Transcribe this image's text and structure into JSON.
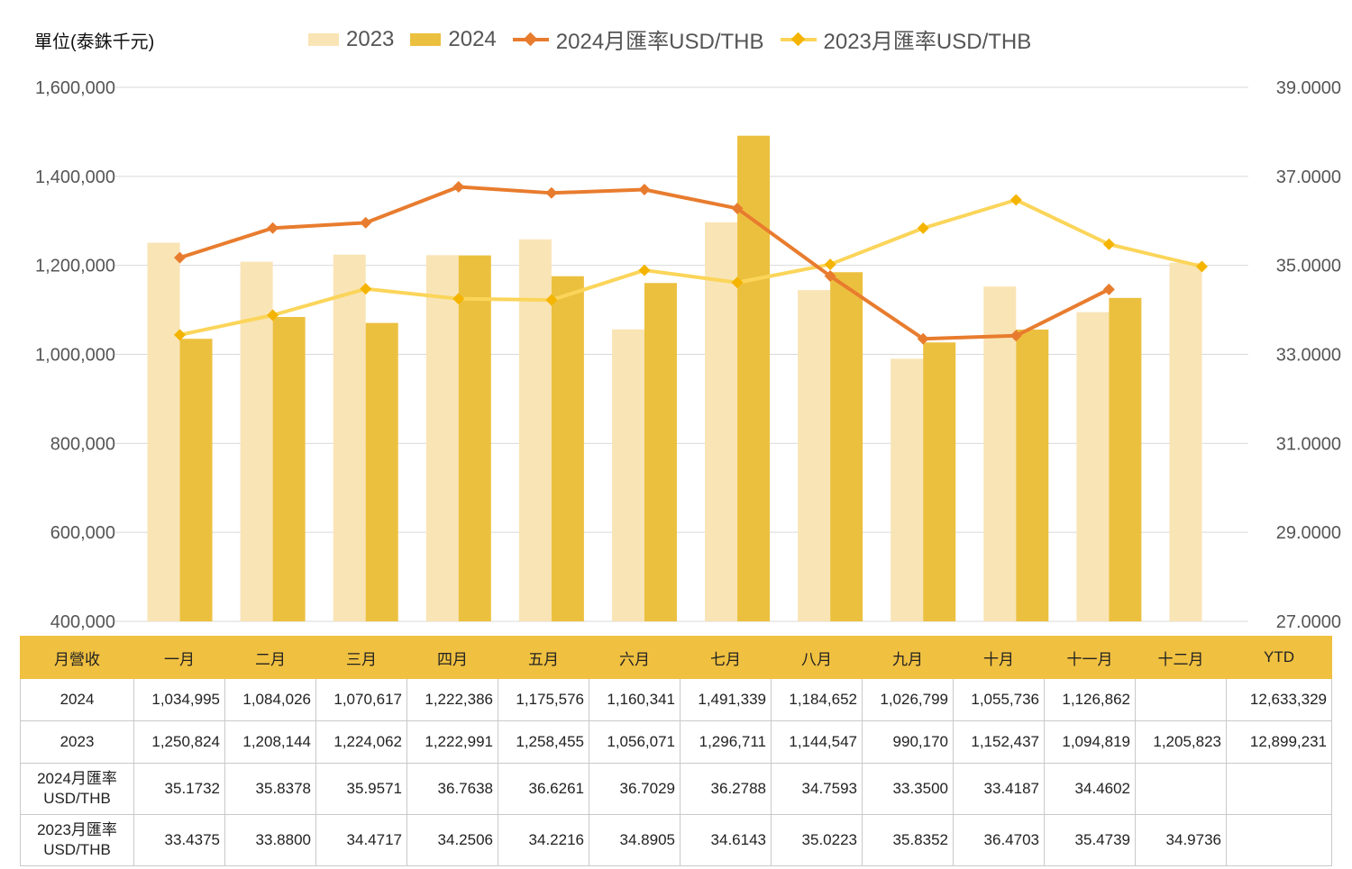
{
  "unit_label": "單位(泰銖千元)",
  "legend": [
    {
      "label": "2023",
      "color": "#f9e4b5",
      "kind": "bar"
    },
    {
      "label": "2024",
      "color": "#ecc03f",
      "kind": "bar"
    },
    {
      "label": "2024月匯率USD/THB",
      "color": "#e87c2e",
      "kind": "line"
    },
    {
      "label": "2023月匯率USD/THB",
      "color": "#fbd55a",
      "kind": "line"
    }
  ],
  "chart_data": {
    "type": "bar",
    "categories": [
      "一月",
      "二月",
      "三月",
      "四月",
      "五月",
      "六月",
      "七月",
      "八月",
      "九月",
      "十月",
      "十一月",
      "十二月"
    ],
    "series": [
      {
        "name": "2023",
        "type": "bar",
        "axis": "left",
        "color": "#f9e4b5",
        "values": [
          1250824,
          1208144,
          1224062,
          1222991,
          1258455,
          1056071,
          1296711,
          1144547,
          990170,
          1152437,
          1094819,
          1205823
        ]
      },
      {
        "name": "2024",
        "type": "bar",
        "axis": "left",
        "color": "#ecc03f",
        "values": [
          1034995,
          1084026,
          1070617,
          1222386,
          1175576,
          1160341,
          1491339,
          1184652,
          1026799,
          1055736,
          1126862,
          null
        ]
      },
      {
        "name": "2024月匯率USD/THB",
        "type": "line",
        "axis": "right",
        "color": "#e87c2e",
        "values": [
          35.1732,
          35.8378,
          35.9571,
          36.7638,
          36.6261,
          36.7029,
          36.2788,
          34.7593,
          33.35,
          33.4187,
          34.4602,
          null
        ]
      },
      {
        "name": "2023月匯率USD/THB",
        "type": "line",
        "axis": "right",
        "color": "#fbd55a",
        "values": [
          33.4375,
          33.88,
          34.4717,
          34.2506,
          34.2216,
          34.8905,
          34.6143,
          35.0223,
          35.8352,
          36.4703,
          35.4739,
          34.9736
        ]
      }
    ],
    "y_left": {
      "min": 400000,
      "max": 1600000,
      "step": 200000,
      "ticks": [
        "400,000",
        "600,000",
        "800,000",
        "1,000,000",
        "1,200,000",
        "1,400,000",
        "1,600,000"
      ]
    },
    "y_right": {
      "min": 27,
      "max": 39,
      "step": 2,
      "ticks": [
        "27.0000",
        "29.0000",
        "31.0000",
        "33.0000",
        "35.0000",
        "37.0000",
        "39.0000"
      ]
    },
    "grid": true,
    "legend_position": "top"
  },
  "table": {
    "header": [
      "月營收",
      "一月",
      "二月",
      "三月",
      "四月",
      "五月",
      "六月",
      "七月",
      "八月",
      "九月",
      "十月",
      "十一月",
      "十二月",
      "YTD"
    ],
    "rows": [
      {
        "label": "2024",
        "cells": [
          "1,034,995",
          "1,084,026",
          "1,070,617",
          "1,222,386",
          "1,175,576",
          "1,160,341",
          "1,491,339",
          "1,184,652",
          "1,026,799",
          "1,055,736",
          "1,126,862",
          "",
          "12,633,329"
        ]
      },
      {
        "label": "2023",
        "cells": [
          "1,250,824",
          "1,208,144",
          "1,224,062",
          "1,222,991",
          "1,258,455",
          "1,056,071",
          "1,296,711",
          "1,144,547",
          "990,170",
          "1,152,437",
          "1,094,819",
          "1,205,823",
          "12,899,231"
        ]
      },
      {
        "label1": "2024月匯率",
        "label2": "USD/THB",
        "cells": [
          "35.1732",
          "35.8378",
          "35.9571",
          "36.7638",
          "36.6261",
          "36.7029",
          "36.2788",
          "34.7593",
          "33.3500",
          "33.4187",
          "34.4602",
          "",
          ""
        ]
      },
      {
        "label1": "2023月匯率",
        "label2": "USD/THB",
        "cells": [
          "33.4375",
          "33.8800",
          "34.4717",
          "34.2506",
          "34.2216",
          "34.8905",
          "34.6143",
          "35.0223",
          "35.8352",
          "36.4703",
          "35.4739",
          "34.9736",
          ""
        ]
      }
    ]
  }
}
